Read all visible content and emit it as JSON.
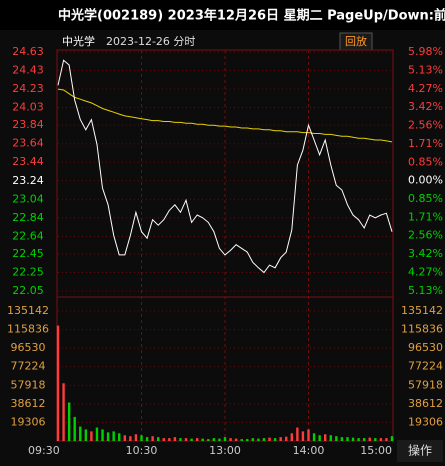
{
  "header": {
    "title": "中光学(002189) 2023年12月26日 星期二 PageUp/Down:前"
  },
  "toolbar": {
    "name": "中光学",
    "date": "2023-12-26 分时",
    "replay": "回放",
    "operate": "操作"
  },
  "chart_data": {
    "type": "line",
    "categories": [
      "09:30",
      null,
      null,
      null,
      null,
      null,
      null,
      null,
      null,
      null,
      null,
      null,
      null,
      null,
      null,
      "10:30",
      null,
      null,
      null,
      null,
      null,
      null,
      null,
      null,
      null,
      null,
      null,
      null,
      null,
      null,
      "13:00",
      null,
      null,
      null,
      null,
      null,
      null,
      null,
      null,
      null,
      null,
      null,
      null,
      null,
      null,
      "14:00",
      null,
      null,
      null,
      null,
      null,
      null,
      null,
      null,
      null,
      null,
      null,
      null,
      null,
      null,
      "15:00"
    ],
    "series": [
      {
        "name": "price",
        "color": "#ffffff",
        "values": [
          24.27,
          24.54,
          24.49,
          24.11,
          23.9,
          23.79,
          23.9,
          23.63,
          23.16,
          22.98,
          22.65,
          22.44,
          22.44,
          22.65,
          22.9,
          22.69,
          22.62,
          22.82,
          22.76,
          22.82,
          22.92,
          22.98,
          22.9,
          23.03,
          22.79,
          22.87,
          22.84,
          22.79,
          22.69,
          22.51,
          22.44,
          22.49,
          22.55,
          22.51,
          22.47,
          22.36,
          22.3,
          22.25,
          22.33,
          22.3,
          22.41,
          22.47,
          22.71,
          23.41,
          23.57,
          23.84,
          23.68,
          23.52,
          23.68,
          23.41,
          23.19,
          23.14,
          22.98,
          22.87,
          22.82,
          22.73,
          22.87,
          22.84,
          22.87,
          22.89,
          22.69
        ]
      },
      {
        "name": "average",
        "color": "#e6d200",
        "values": [
          24.23,
          24.22,
          24.18,
          24.14,
          24.12,
          24.1,
          24.08,
          24.05,
          24.02,
          24.0,
          23.98,
          23.96,
          23.94,
          23.93,
          23.92,
          23.91,
          23.9,
          23.89,
          23.89,
          23.88,
          23.88,
          23.87,
          23.87,
          23.86,
          23.86,
          23.85,
          23.85,
          23.84,
          23.84,
          23.83,
          23.83,
          23.82,
          23.82,
          23.81,
          23.81,
          23.8,
          23.8,
          23.79,
          23.79,
          23.78,
          23.78,
          23.77,
          23.77,
          23.77,
          23.76,
          23.76,
          23.75,
          23.75,
          23.74,
          23.74,
          23.73,
          23.72,
          23.72,
          23.71,
          23.7,
          23.7,
          23.69,
          23.68,
          23.68,
          23.67,
          23.66
        ]
      }
    ],
    "volume": {
      "values": [
        120000,
        60000,
        40000,
        25000,
        15000,
        12000,
        10000,
        14000,
        12000,
        9000,
        10000,
        8000,
        6000,
        5000,
        7000,
        6000,
        4000,
        5000,
        4000,
        3000,
        3000,
        4000,
        3000,
        3000,
        2500,
        3000,
        2500,
        2000,
        3000,
        2500,
        4000,
        3000,
        2500,
        2000,
        2000,
        3000,
        2500,
        3000,
        3500,
        3000,
        4000,
        4500,
        8000,
        14000,
        10000,
        12000,
        8000,
        6000,
        7000,
        6000,
        5000,
        4000,
        4000,
        3500,
        3000,
        3000,
        3500,
        3000,
        3000,
        3000,
        5000
      ],
      "ylim": [
        0,
        135142
      ],
      "yticks": [
        135142,
        115836,
        96530,
        77224,
        57918,
        38612,
        19306
      ],
      "color": "#e0a040"
    },
    "ylim": [
      22.05,
      24.63
    ],
    "yticks": [
      24.63,
      24.43,
      24.23,
      24.03,
      23.84,
      23.64,
      23.44,
      23.24,
      23.04,
      22.84,
      22.64,
      22.45,
      22.25,
      22.05
    ],
    "y2lim": [
      -5.13,
      5.98
    ],
    "y2ticks": [
      {
        "value": 5.98,
        "label": "5.98%"
      },
      {
        "value": 5.13,
        "label": "5.13%"
      },
      {
        "value": 4.27,
        "label": "4.27%"
      },
      {
        "value": 3.42,
        "label": "3.42%"
      },
      {
        "value": 2.56,
        "label": "2.56%"
      },
      {
        "value": 1.71,
        "label": "1.71%"
      },
      {
        "value": 0.85,
        "label": "0.85%"
      },
      {
        "value": 0,
        "label": "0.00%"
      },
      {
        "value": -0.85,
        "label": "0.85%"
      },
      {
        "value": -1.71,
        "label": "1.71%"
      },
      {
        "value": -2.56,
        "label": "2.56%"
      },
      {
        "value": -3.42,
        "label": "3.42%"
      },
      {
        "value": -4.27,
        "label": "4.27%"
      },
      {
        "value": -5.13,
        "label": "5.13%"
      }
    ],
    "up_color": "#ff3c3c",
    "down_color": "#00d000",
    "flat_color": "#ffffff",
    "grid": true
  }
}
